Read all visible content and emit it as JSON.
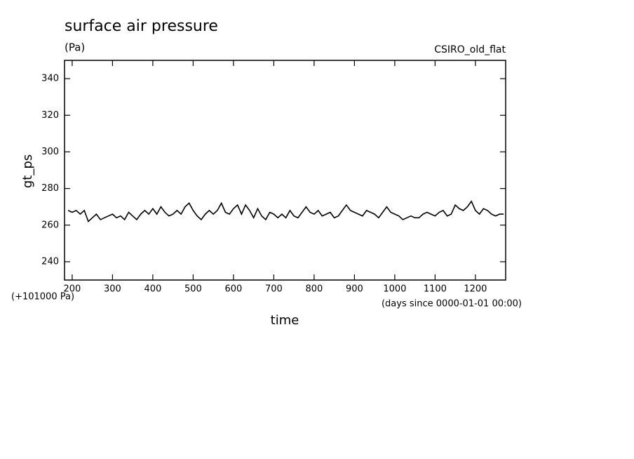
{
  "chart_data": {
    "type": "line",
    "title": "surface air pressure",
    "subtitle": "(Pa)",
    "annotation": "CSIRO_old_flat",
    "y_offset_label": "(+101000 Pa)",
    "x_units_label": "(days since 0000-01-01 00:00)",
    "xlabel": "time",
    "ylabel": "gt_ps",
    "xlim": [
      181,
      1275
    ],
    "ylim": [
      230,
      350
    ],
    "xticks": [
      200,
      300,
      400,
      500,
      600,
      700,
      800,
      900,
      1000,
      1100,
      1200
    ],
    "yticks": [
      240,
      260,
      280,
      300,
      320,
      340
    ],
    "x": [
      190,
      200,
      210,
      220,
      230,
      240,
      250,
      260,
      270,
      280,
      290,
      300,
      310,
      320,
      330,
      340,
      350,
      360,
      370,
      380,
      390,
      400,
      410,
      420,
      430,
      440,
      450,
      460,
      470,
      480,
      490,
      500,
      510,
      520,
      530,
      540,
      550,
      560,
      570,
      580,
      590,
      600,
      610,
      620,
      630,
      640,
      650,
      660,
      670,
      680,
      690,
      700,
      710,
      720,
      730,
      740,
      750,
      760,
      770,
      780,
      790,
      800,
      810,
      820,
      830,
      840,
      850,
      860,
      870,
      880,
      890,
      900,
      910,
      920,
      930,
      940,
      950,
      960,
      970,
      980,
      990,
      1000,
      1010,
      1020,
      1030,
      1040,
      1050,
      1060,
      1070,
      1080,
      1090,
      1100,
      1110,
      1120,
      1130,
      1140,
      1150,
      1160,
      1170,
      1180,
      1190,
      1200,
      1210,
      1220,
      1230,
      1240,
      1250,
      1260,
      1270
    ],
    "series": [
      {
        "color": "#000000",
        "values": [
          268,
          267,
          268,
          266,
          268,
          262,
          264,
          266,
          263,
          264,
          265,
          266,
          264,
          265,
          263,
          267,
          265,
          263,
          266,
          268,
          266,
          269,
          266,
          270,
          267,
          265,
          266,
          268,
          266,
          270,
          272,
          268,
          265,
          263,
          266,
          268,
          266,
          268,
          272,
          267,
          266,
          269,
          271,
          266,
          271,
          268,
          264,
          269,
          265,
          263,
          267,
          266,
          264,
          266,
          264,
          268,
          265,
          264,
          267,
          270,
          267,
          266,
          268,
          265,
          266,
          267,
          264,
          265,
          268,
          271,
          268,
          267,
          266,
          265,
          268,
          267,
          266,
          264,
          267,
          270,
          267,
          266,
          265,
          263,
          264,
          265,
          264,
          264,
          266,
          267,
          266,
          265,
          267,
          268,
          265,
          266,
          271,
          269,
          268,
          270,
          273,
          268,
          266,
          269,
          268,
          266,
          265,
          266,
          266
        ]
      }
    ]
  }
}
